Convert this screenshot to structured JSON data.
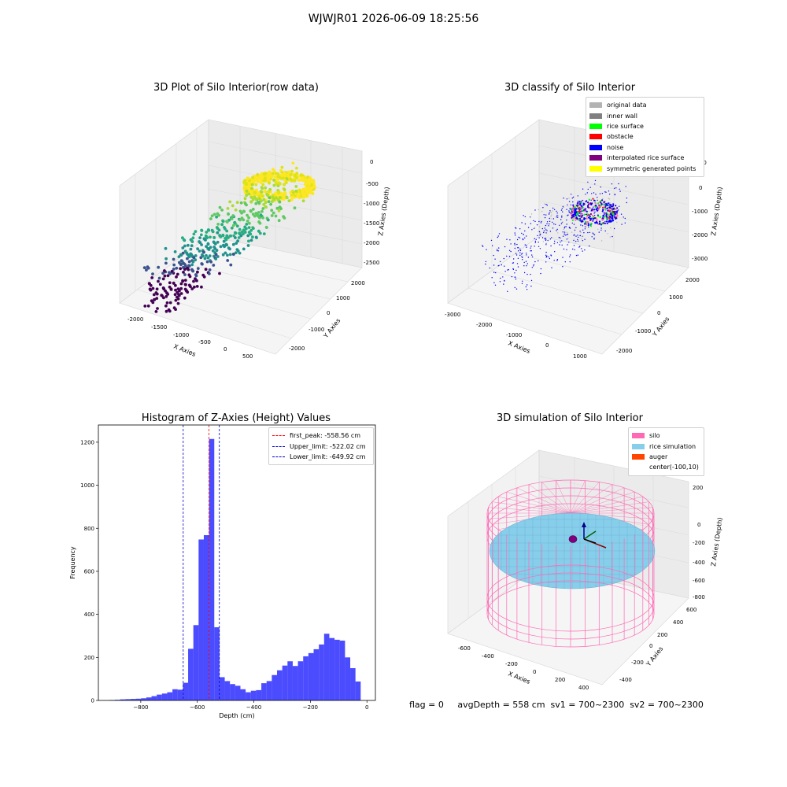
{
  "suptitle": "WJWJR01 2026-06-09 18:25:56",
  "panels": {
    "raw": {
      "title": "3D Plot of Silo Interior(row data)",
      "xlabel": "X Axies",
      "ylabel": "Y Axies",
      "zlabel": "Z Axies (Depth)",
      "xticks": [
        "-2000",
        "-1500",
        "-1000",
        "-500",
        "0",
        "500"
      ],
      "yticks": [
        "-2000",
        "-1000",
        "0",
        "1000",
        "2000"
      ],
      "zticks": [
        "0",
        "-500",
        "-1000",
        "-1500",
        "-2000",
        "-2500"
      ],
      "colormap": "viridis"
    },
    "classify": {
      "title": "3D classify of Silo Interior",
      "xlabel": "X Axies",
      "ylabel": "Y Axies",
      "zlabel": "Z Axies (Depth)",
      "xticks": [
        "-3000",
        "-2000",
        "-1000",
        "0",
        "1000"
      ],
      "yticks": [
        "-2000",
        "-1000",
        "0",
        "1000",
        "2000"
      ],
      "zticks": [
        "1000",
        "0",
        "-1000",
        "-2000",
        "-3000"
      ],
      "legend": [
        {
          "label": "original data",
          "color": "#b3b3b3"
        },
        {
          "label": "inner wall",
          "color": "#808080"
        },
        {
          "label": "rice surface",
          "color": "#00ff00"
        },
        {
          "label": "obstacle",
          "color": "#ff0000"
        },
        {
          "label": "noise",
          "color": "#0000ff"
        },
        {
          "label": "interpolated rice surface",
          "color": "#800080"
        },
        {
          "label": "symmetric generated points",
          "color": "#ffff00"
        }
      ]
    },
    "simulation": {
      "title": "3D simulation of Silo Interior",
      "xlabel": "X Axies",
      "ylabel": "Y Axies",
      "zlabel": "Z Axies (Depth)",
      "xticks": [
        "-600",
        "-400",
        "-200",
        "0",
        "200",
        "400"
      ],
      "yticks": [
        "-400",
        "-200",
        "0",
        "200",
        "400",
        "600"
      ],
      "zticks": [
        "200",
        "0",
        "-200",
        "-400",
        "-600",
        "-800"
      ],
      "legend": [
        {
          "label": "silo",
          "color": "#ff69b4"
        },
        {
          "label": "rice simulation",
          "color": "#87ceeb"
        },
        {
          "label": "auger",
          "color": "#ff4500"
        },
        {
          "label": "center(-100,10)",
          "color": ""
        }
      ]
    }
  },
  "footer": "flag = 0     avgDepth = 558 cm  sv1 = 700~2300  sv2 = 700~2300",
  "chart_data": {
    "type": "bar",
    "title": "Histogram of Z-Axies (Height) Values",
    "xlabel": "Depth (cm)",
    "ylabel": "Frequency",
    "xlim": [
      -950,
      30
    ],
    "ylim": [
      0,
      1280
    ],
    "xticks": [
      -800,
      -600,
      -400,
      -200,
      0
    ],
    "yticks": [
      0,
      200,
      400,
      600,
      800,
      1000,
      1200
    ],
    "bin_width": 18.5,
    "bin_start": -910,
    "values": [
      2,
      3,
      5,
      6,
      7,
      8,
      10,
      14,
      20,
      27,
      32,
      38,
      52,
      50,
      82,
      240,
      350,
      748,
      768,
      1215,
      340,
      108,
      90,
      76,
      68,
      52,
      38,
      45,
      48,
      80,
      90,
      118,
      140,
      162,
      182,
      160,
      182,
      205,
      220,
      238,
      260,
      310,
      290,
      282,
      278,
      200,
      150,
      88
    ],
    "bar_color": "#0000ff",
    "lines": [
      {
        "label": "first_peak: -558.56 cm",
        "value": -558.56,
        "color": "#ff0000"
      },
      {
        "label": "Upper_limit: -522.02 cm",
        "value": -522.02,
        "color": "#0000cc"
      },
      {
        "label": "Lower_limit: -649.92 cm",
        "value": -649.92,
        "color": "#0000cc"
      }
    ]
  }
}
